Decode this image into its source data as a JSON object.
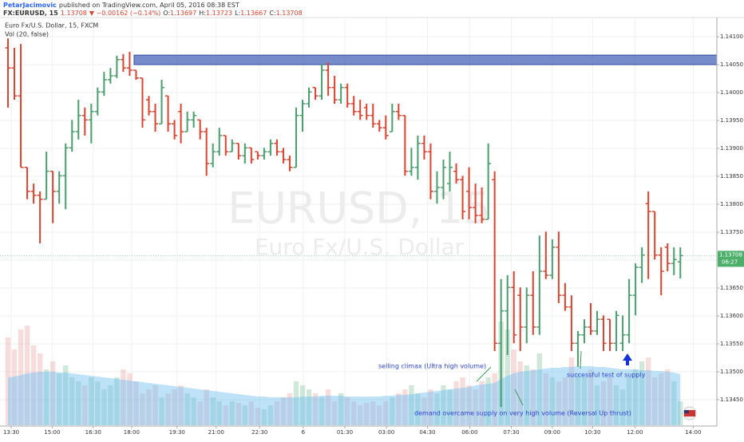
{
  "header": {
    "author": "PetarJacimovic",
    "published": "published on TradingView.com, April 05, 2016 08:38 EST",
    "symbol": "FX:EURUSD, 15",
    "last": "1.13708",
    "change": "▼ −0.00162 (−0.14%)",
    "ohlc": [
      {
        "label": "O:",
        "value": "1.13697"
      },
      {
        "label": "H:",
        "value": "1.13723"
      },
      {
        "label": "L:",
        "value": "1.13667"
      },
      {
        "label": "C:",
        "value": "1.13708"
      }
    ]
  },
  "legend": {
    "instrument": "Euro Fx/U.S. Dollar, 15, FXCM",
    "volume": "Vol (20, false)"
  },
  "watermark": {
    "symbol": "EURUSD, 15",
    "name": "Euro Fx/U.S. Dollar"
  },
  "countdown": "06:27",
  "chart_data": {
    "type": "ohlc",
    "up_color": "#4a9e6d",
    "down_color": "#d9432f",
    "grid": true,
    "zone": [
      1.1405,
      1.14067
    ],
    "xlim": [
      -1.25,
      110.7
    ],
    "xticks": [
      {
        "value": 0.5,
        "label": "13:30"
      },
      {
        "value": 6.9,
        "label": "15:00"
      },
      {
        "value": 13.3,
        "label": "16:30"
      },
      {
        "value": 19.3,
        "label": "18:00"
      },
      {
        "value": 26.4,
        "label": "19:30"
      },
      {
        "value": 32.5,
        "label": "21:00"
      },
      {
        "value": 39.3,
        "label": "22:30"
      },
      {
        "value": 46.1,
        "label": "6"
      },
      {
        "value": 52.6,
        "label": "01:30"
      },
      {
        "value": 59.1,
        "label": "03:00"
      },
      {
        "value": 65.5,
        "label": "04:30"
      },
      {
        "value": 72.1,
        "label": "06:00"
      },
      {
        "value": 78.6,
        "label": "07:30"
      },
      {
        "value": 85.0,
        "label": "09:00"
      },
      {
        "value": 91.3,
        "label": "10:30"
      },
      {
        "value": 97.9,
        "label": "12:00"
      },
      {
        "value": 107.0,
        "label": "14:00"
      }
    ],
    "ylim": [
      1.13404,
      1.1414
    ],
    "yticks": [
      {
        "value": 1.1345,
        "label": "1.13450"
      },
      {
        "value": 1.135,
        "label": "1.13500"
      },
      {
        "value": 1.1355,
        "label": "1.13550"
      },
      {
        "value": 1.136,
        "label": "1.13600"
      },
      {
        "value": 1.1365,
        "label": "1.13650"
      },
      {
        "value": 1.137,
        "label": "1.13700"
      },
      {
        "value": 1.1375,
        "label": "1.13750"
      },
      {
        "value": 1.138,
        "label": "1.13800"
      },
      {
        "value": 1.1385,
        "label": "1.13850"
      },
      {
        "value": 1.139,
        "label": "1.13900"
      },
      {
        "value": 1.1395,
        "label": "1.13950"
      },
      {
        "value": 1.14,
        "label": "1.14000"
      },
      {
        "value": 1.1405,
        "label": "1.14050"
      },
      {
        "value": 1.141,
        "label": "1.14100"
      }
    ],
    "open": [
      1.1408,
      1.14044,
      1.13994,
      1.13866,
      1.13823,
      1.13816,
      1.13809,
      1.13859,
      1.13823,
      1.13851,
      1.13901,
      1.1393,
      1.13959,
      1.13951,
      1.13966,
      1.14001,
      1.14023,
      1.1403,
      1.14059,
      1.14044,
      1.1404,
      1.14026,
      1.13987,
      1.13966,
      1.13944,
      1.13994,
      1.13944,
      1.13966,
      1.1393,
      1.13951,
      1.13951,
      1.1393,
      1.13873,
      1.13894,
      1.13923,
      1.13894,
      1.13909,
      1.13887,
      1.13901,
      1.13894,
      1.13887,
      1.13894,
      1.13909,
      1.13894,
      1.1388,
      1.13866,
      1.13959,
      1.1398,
      1.14009,
      1.13994,
      1.1404,
      1.14009,
      1.13987,
      1.14009,
      1.1398,
      1.13966,
      1.13973,
      1.13959,
      1.13944,
      1.13937,
      1.1393,
      1.13966,
      1.13959,
      1.13859,
      1.13866,
      1.13909,
      1.13894,
      1.13823,
      1.1383,
      1.13837,
      1.13859,
      1.13844,
      1.13823,
      1.13794,
      1.1378,
      1.13773,
      1.13844,
      1.13551,
      1.13609,
      1.13651,
      1.13637,
      1.1358,
      1.13637,
      1.1358,
      1.1368,
      1.13673,
      1.13723,
      1.13637,
      1.13616,
      1.13551,
      1.13566,
      1.1358,
      1.13573,
      1.13594,
      1.13594,
      1.13551,
      1.13551,
      1.13566,
      1.13637,
      1.13687,
      1.13801,
      1.13787,
      1.13709,
      1.13723,
      1.13694,
      1.13697
    ],
    "high": [
      1.14097,
      1.1408,
      1.14087,
      1.13866,
      1.13837,
      1.13823,
      1.13894,
      1.13859,
      1.13859,
      1.13909,
      1.13951,
      1.13987,
      1.13973,
      1.1398,
      1.14009,
      1.14037,
      1.14044,
      1.14066,
      1.14069,
      1.14073,
      1.1404,
      1.14026,
      1.13994,
      1.1398,
      1.14023,
      1.13994,
      1.13951,
      1.1398,
      1.13966,
      1.13966,
      1.13951,
      1.13937,
      1.13909,
      1.13937,
      1.13923,
      1.13916,
      1.13909,
      1.13909,
      1.13901,
      1.13894,
      1.13901,
      1.13916,
      1.13916,
      1.13901,
      1.13887,
      1.13973,
      1.13987,
      1.14009,
      1.14009,
      1.14051,
      1.14054,
      1.1403,
      1.14016,
      1.14016,
      1.13994,
      1.13987,
      1.1398,
      1.1398,
      1.13951,
      1.13959,
      1.1398,
      1.1398,
      1.13959,
      1.13901,
      1.13923,
      1.13923,
      1.13909,
      1.13859,
      1.1388,
      1.13894,
      1.13873,
      1.13851,
      1.13866,
      1.13837,
      1.1383,
      1.13909,
      1.13859,
      1.13666,
      1.13673,
      1.1368,
      1.13651,
      1.13651,
      1.1368,
      1.13744,
      1.13751,
      1.13737,
      1.13751,
      1.13659,
      1.13637,
      1.13573,
      1.13594,
      1.13623,
      1.13609,
      1.13601,
      1.13594,
      1.13609,
      1.13601,
      1.13666,
      1.13694,
      1.13723,
      1.13823,
      1.13787,
      1.13723,
      1.1373,
      1.13723,
      1.13723
    ],
    "low": [
      1.13973,
      1.13987,
      1.13866,
      1.13809,
      1.13801,
      1.1373,
      1.13809,
      1.13766,
      1.13801,
      1.13791,
      1.13894,
      1.13916,
      1.13923,
      1.13909,
      1.13959,
      1.13994,
      1.14016,
      1.14026,
      1.14037,
      1.1403,
      1.14023,
      1.13937,
      1.13959,
      1.1393,
      1.13944,
      1.1393,
      1.13916,
      1.13909,
      1.1393,
      1.13937,
      1.13916,
      1.13851,
      1.13866,
      1.13887,
      1.13887,
      1.13894,
      1.1388,
      1.13873,
      1.13873,
      1.1388,
      1.1388,
      1.13887,
      1.13887,
      1.13873,
      1.13859,
      1.13866,
      1.1393,
      1.13973,
      1.13987,
      1.13987,
      1.13994,
      1.1398,
      1.1398,
      1.13973,
      1.13959,
      1.13951,
      1.13951,
      1.13937,
      1.1393,
      1.13916,
      1.1393,
      1.13951,
      1.13851,
      1.13851,
      1.13844,
      1.1388,
      1.13809,
      1.13801,
      1.13809,
      1.13823,
      1.13837,
      1.13773,
      1.13773,
      1.13766,
      1.13766,
      1.13773,
      1.13537,
      1.13437,
      1.1353,
      1.13551,
      1.13537,
      1.13551,
      1.13566,
      1.13566,
      1.13666,
      1.13666,
      1.13623,
      1.13609,
      1.13537,
      1.13509,
      1.13551,
      1.13566,
      1.13566,
      1.13537,
      1.13537,
      1.13537,
      1.13537,
      1.13551,
      1.13601,
      1.13659,
      1.13666,
      1.13701,
      1.13637,
      1.1368,
      1.13673,
      1.13667
    ],
    "close": [
      1.14044,
      1.13994,
      1.13866,
      1.13823,
      1.13816,
      1.13809,
      1.13859,
      1.13823,
      1.13851,
      1.13901,
      1.1393,
      1.13959,
      1.13951,
      1.13966,
      1.14001,
      1.14023,
      1.1403,
      1.14059,
      1.14044,
      1.1404,
      1.14026,
      1.13951,
      1.13966,
      1.13944,
      1.14009,
      1.13944,
      1.13923,
      1.1393,
      1.13951,
      1.13959,
      1.1393,
      1.13873,
      1.13894,
      1.13923,
      1.13894,
      1.13909,
      1.13887,
      1.13901,
      1.1388,
      1.13887,
      1.13894,
      1.13909,
      1.13894,
      1.1388,
      1.13866,
      1.13959,
      1.1398,
      1.14001,
      1.13994,
      1.1404,
      1.14009,
      1.13987,
      1.14009,
      1.1398,
      1.13966,
      1.13959,
      1.13959,
      1.13944,
      1.13937,
      1.13923,
      1.13966,
      1.13959,
      1.13859,
      1.13866,
      1.13909,
      1.13894,
      1.13823,
      1.1383,
      1.13866,
      1.13866,
      1.13844,
      1.13787,
      1.13794,
      1.1378,
      1.13773,
      1.13873,
      1.13551,
      1.13609,
      1.13651,
      1.13566,
      1.1358,
      1.13637,
      1.1358,
      1.1368,
      1.13673,
      1.13723,
      1.13637,
      1.13616,
      1.13551,
      1.13566,
      1.1358,
      1.13573,
      1.13594,
      1.13551,
      1.13551,
      1.13601,
      1.13566,
      1.13637,
      1.13687,
      1.13709,
      1.13787,
      1.13709,
      1.1368,
      1.13694,
      1.13701,
      1.13708
    ],
    "volume": [
      110,
      95,
      120,
      125,
      100,
      90,
      70,
      80,
      65,
      75,
      60,
      55,
      50,
      60,
      55,
      45,
      50,
      60,
      70,
      65,
      55,
      40,
      45,
      50,
      35,
      40,
      45,
      50,
      40,
      35,
      30,
      45,
      35,
      30,
      25,
      30,
      28,
      25,
      30,
      22,
      20,
      25,
      30,
      35,
      40,
      55,
      50,
      45,
      40,
      35,
      45,
      30,
      40,
      35,
      30,
      25,
      28,
      30,
      25,
      30,
      35,
      40,
      45,
      50,
      40,
      35,
      45,
      40,
      50,
      45,
      55,
      60,
      50,
      45,
      55,
      60,
      65,
      130,
      120,
      95,
      80,
      75,
      70,
      90,
      65,
      60,
      55,
      60,
      85,
      65,
      60,
      70,
      50,
      55,
      60,
      50,
      45,
      60,
      70,
      80,
      85,
      60,
      65,
      70,
      55,
      30
    ],
    "volume_ma": [
      60,
      61,
      63,
      65,
      66,
      67,
      67,
      67,
      66,
      66,
      65,
      64,
      63,
      62,
      61,
      60,
      59,
      58,
      57,
      56,
      55,
      54,
      53,
      52,
      51,
      50,
      49,
      48,
      47,
      46,
      45,
      44,
      43,
      42,
      41,
      40,
      39,
      38,
      37,
      36,
      36,
      35,
      35,
      35,
      35,
      35,
      36,
      36,
      36,
      37,
      37,
      37,
      37,
      36,
      36,
      36,
      36,
      36,
      36,
      37,
      37,
      38,
      38,
      39,
      40,
      41,
      42,
      43,
      44,
      45,
      46,
      47,
      48,
      50,
      51,
      52,
      53,
      58,
      62,
      65,
      67,
      68,
      69,
      70,
      71,
      72,
      72,
      73,
      73,
      74,
      74,
      74,
      73,
      73,
      72,
      71,
      70,
      70,
      70,
      69,
      69,
      68,
      68,
      67,
      66,
      64
    ],
    "annotations": [
      "selling climax (Ultra high volume)",
      "demand overcame supply on very high volume (Reversal Up thrust)",
      "successful test of supply"
    ]
  }
}
